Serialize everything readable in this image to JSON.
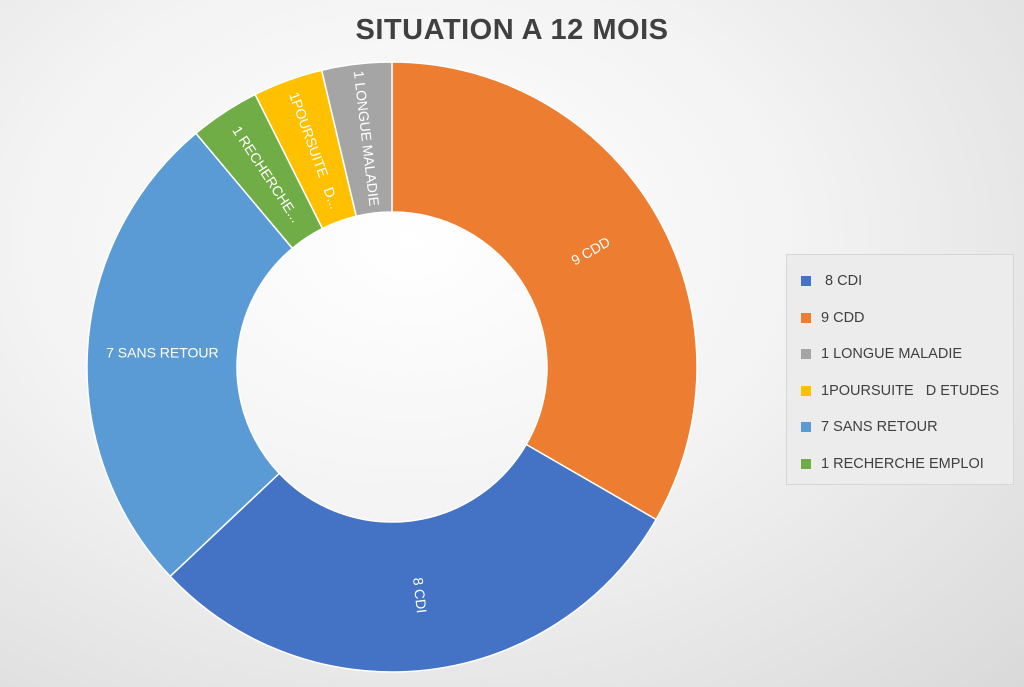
{
  "chart_data": {
    "type": "pie",
    "subtype": "donut",
    "title": "SITUATION A 12 MOIS",
    "legend_position": "right",
    "slices": [
      {
        "legend_label": " 8 CDI",
        "data_label": "8 CDI",
        "value": 8,
        "color": "#4472C4"
      },
      {
        "legend_label": "9 CDD",
        "data_label": "9 CDD",
        "value": 9,
        "color": "#ED7D31"
      },
      {
        "legend_label": "1 LONGUE MALADIE",
        "data_label": "1 LONGUE MALADIE",
        "value": 1,
        "color": "#A5A5A5"
      },
      {
        "legend_label": "1POURSUITE   D ETUDES",
        "data_label": "1POURSUITE   D...",
        "value": 1,
        "color": "#FFC000"
      },
      {
        "legend_label": "7 SANS RETOUR",
        "data_label": "7 SANS RETOUR",
        "value": 7,
        "color": "#5B9BD5"
      },
      {
        "legend_label": "1 RECHERCHE EMPLOI",
        "data_label": "1 RECHERCHE...",
        "value": 1,
        "color": "#70AD47"
      }
    ]
  }
}
